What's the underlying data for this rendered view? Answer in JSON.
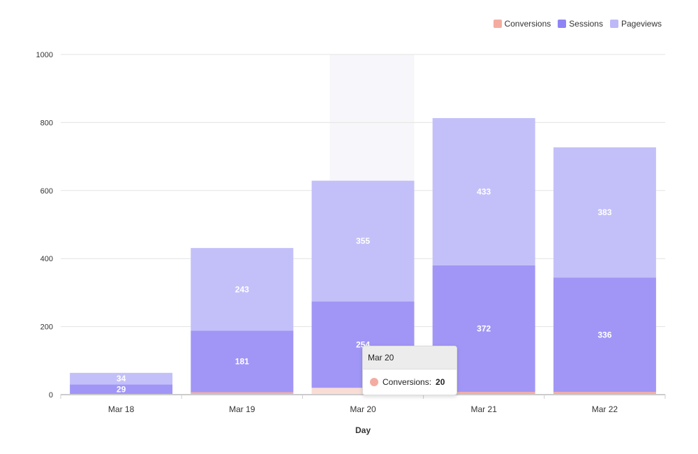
{
  "chart_data": {
    "type": "bar",
    "stacked": true,
    "categories": [
      "Mar 18",
      "Mar 19",
      "Mar 20",
      "Mar 21",
      "Mar 22"
    ],
    "series": [
      {
        "name": "Conversions",
        "values": [
          1,
          7,
          20,
          8,
          8
        ],
        "color": "#f4aca1",
        "show_labels": false
      },
      {
        "name": "Sessions",
        "values": [
          29,
          181,
          254,
          372,
          336
        ],
        "color": "#a196f6",
        "show_labels": true
      },
      {
        "name": "Pageviews",
        "values": [
          34,
          243,
          355,
          433,
          383
        ],
        "color": "#c3c0f9",
        "show_labels": true
      }
    ],
    "xlabel": "Day",
    "ylabel": "",
    "ylim": [
      0,
      1000
    ],
    "yticks": [
      0,
      200,
      400,
      600,
      800,
      1000
    ],
    "grid": true,
    "legend_position": "top-right",
    "highlighted_category": "Mar 20"
  },
  "tooltip": {
    "title": "Mar 20",
    "label": "Conversions:",
    "value": "20",
    "color": "#f4aca1"
  }
}
